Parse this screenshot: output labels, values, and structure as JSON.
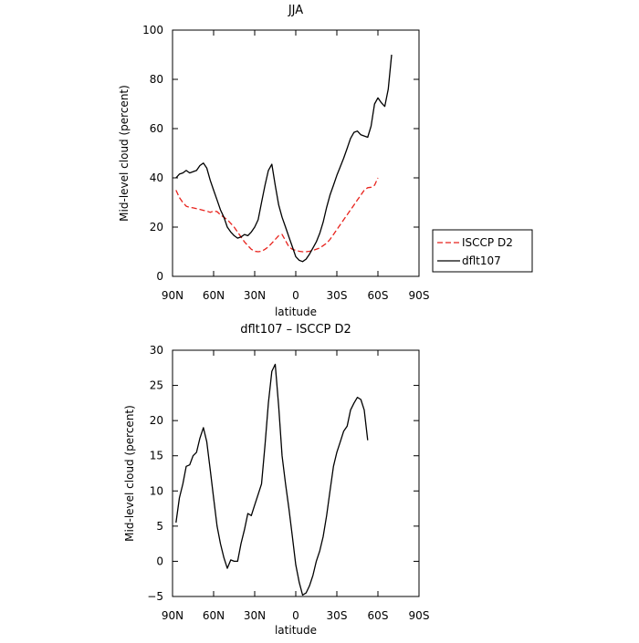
{
  "chart_data": [
    {
      "type": "line",
      "title": "JJA",
      "xlabel": "latitude",
      "ylabel": "Mid-level cloud (percent)",
      "xlim": [
        90,
        -90
      ],
      "ylim": [
        0,
        100
      ],
      "x_ticks": [
        90,
        60,
        30,
        0,
        -30,
        -60,
        -90
      ],
      "x_tick_labels": [
        "90N",
        "60N",
        "30N",
        "0",
        "30S",
        "60S",
        "90S"
      ],
      "y_ticks": [
        0,
        20,
        40,
        60,
        80,
        100
      ],
      "y_tick_labels": [
        "0",
        "20",
        "40",
        "60",
        "80",
        "100"
      ],
      "grid": false,
      "legend_position": "right-outside-bottom",
      "series": [
        {
          "name": "ISCCP D2",
          "color": "#e8221c",
          "style": "dashed",
          "points": [
            [
              87.5,
              35
            ],
            [
              85,
              32
            ],
            [
              82.5,
              30
            ],
            [
              80,
              28.5
            ],
            [
              77.5,
              28
            ],
            [
              75,
              27.8
            ],
            [
              72.5,
              27.5
            ],
            [
              70,
              27.2
            ],
            [
              67.5,
              26.8
            ],
            [
              65,
              26.5
            ],
            [
              62.5,
              26
            ],
            [
              60,
              26.5
            ],
            [
              57.5,
              26.3
            ],
            [
              55,
              25
            ],
            [
              52.5,
              24
            ],
            [
              50,
              23
            ],
            [
              47.5,
              21.5
            ],
            [
              45,
              20
            ],
            [
              42.5,
              18
            ],
            [
              40,
              16
            ],
            [
              37.5,
              14
            ],
            [
              35,
              12.5
            ],
            [
              32.5,
              11
            ],
            [
              30,
              10.2
            ],
            [
              27.5,
              10
            ],
            [
              25,
              10.2
            ],
            [
              22.5,
              11
            ],
            [
              20,
              12
            ],
            [
              17.5,
              13.5
            ],
            [
              15,
              15
            ],
            [
              12.5,
              16.5
            ],
            [
              10,
              17
            ],
            [
              7.5,
              14.5
            ],
            [
              5,
              12
            ],
            [
              2.5,
              11
            ],
            [
              0,
              10.5
            ],
            [
              -2.5,
              10.2
            ],
            [
              -5,
              10
            ],
            [
              -7.5,
              10
            ],
            [
              -10,
              10.2
            ],
            [
              -12.5,
              10.5
            ],
            [
              -15,
              11
            ],
            [
              -17.5,
              11.5
            ],
            [
              -20,
              12.5
            ],
            [
              -22.5,
              13.5
            ],
            [
              -25,
              15
            ],
            [
              -27.5,
              17
            ],
            [
              -30,
              19
            ],
            [
              -32.5,
              21
            ],
            [
              -35,
              23
            ],
            [
              -37.5,
              25
            ],
            [
              -40,
              27
            ],
            [
              -42.5,
              29
            ],
            [
              -45,
              31
            ],
            [
              -47.5,
              33
            ],
            [
              -50,
              35
            ],
            [
              -52.5,
              36
            ],
            [
              -55,
              36.2
            ],
            [
              -57.5,
              37
            ],
            [
              -60,
              40
            ]
          ]
        },
        {
          "name": "dflt107",
          "color": "#000000",
          "style": "solid",
          "points": [
            [
              87.5,
              40
            ],
            [
              85,
              41.5
            ],
            [
              82.5,
              42
            ],
            [
              80,
              43
            ],
            [
              77.5,
              42
            ],
            [
              75,
              42.5
            ],
            [
              72.5,
              43
            ],
            [
              70,
              45
            ],
            [
              67.5,
              46
            ],
            [
              65,
              44
            ],
            [
              62.5,
              39
            ],
            [
              60,
              35
            ],
            [
              57.5,
              31
            ],
            [
              55,
              27
            ],
            [
              52.5,
              24
            ],
            [
              50,
              20
            ],
            [
              47.5,
              18
            ],
            [
              45,
              16.5
            ],
            [
              42.5,
              15.5
            ],
            [
              40,
              16
            ],
            [
              37.5,
              17
            ],
            [
              35,
              16.5
            ],
            [
              32.5,
              18
            ],
            [
              30,
              20
            ],
            [
              27.5,
              23
            ],
            [
              25,
              30
            ],
            [
              22.5,
              37
            ],
            [
              20,
              43
            ],
            [
              17.5,
              45.5
            ],
            [
              15,
              37
            ],
            [
              12.5,
              29
            ],
            [
              10,
              24
            ],
            [
              7.5,
              20
            ],
            [
              5,
              16
            ],
            [
              2.5,
              12
            ],
            [
              0,
              8
            ],
            [
              -2.5,
              6.5
            ],
            [
              -5,
              6
            ],
            [
              -7.5,
              7
            ],
            [
              -10,
              9
            ],
            [
              -12.5,
              11.5
            ],
            [
              -15,
              14
            ],
            [
              -17.5,
              17.5
            ],
            [
              -20,
              22
            ],
            [
              -22.5,
              28
            ],
            [
              -25,
              33
            ],
            [
              -27.5,
              37
            ],
            [
              -30,
              41
            ],
            [
              -32.5,
              44.5
            ],
            [
              -35,
              48
            ],
            [
              -37.5,
              52
            ],
            [
              -40,
              56
            ],
            [
              -42.5,
              58.5
            ],
            [
              -45,
              59
            ],
            [
              -47.5,
              57.5
            ],
            [
              -50,
              57
            ],
            [
              -52.5,
              56.5
            ],
            [
              -55,
              61
            ],
            [
              -57.5,
              70
            ],
            [
              -60,
              72.5
            ],
            [
              -62.5,
              70.5
            ],
            [
              -65,
              69
            ],
            [
              -67.5,
              76
            ],
            [
              -70,
              90
            ]
          ]
        }
      ]
    },
    {
      "type": "line",
      "title": "dflt107 – ISCCP D2",
      "xlabel": "latitude",
      "ylabel": "Mid-level cloud (percent)",
      "xlim": [
        90,
        -90
      ],
      "ylim": [
        -5,
        30
      ],
      "x_ticks": [
        90,
        60,
        30,
        0,
        -30,
        -60,
        -90
      ],
      "x_tick_labels": [
        "90N",
        "60N",
        "30N",
        "0",
        "30S",
        "60S",
        "90S"
      ],
      "y_ticks": [
        -5,
        0,
        5,
        10,
        15,
        20,
        25,
        30
      ],
      "y_tick_labels": [
        "−5",
        "0",
        "5",
        "10",
        "15",
        "20",
        "25",
        "30"
      ],
      "grid": false,
      "series": [
        {
          "color": "#000000",
          "style": "solid",
          "points": [
            [
              87.5,
              5.5
            ],
            [
              85,
              9
            ],
            [
              82.5,
              11
            ],
            [
              80,
              13.5
            ],
            [
              77.5,
              13.7
            ],
            [
              75,
              15
            ],
            [
              72.5,
              15.5
            ],
            [
              70,
              17.5
            ],
            [
              67.5,
              19
            ],
            [
              65,
              17
            ],
            [
              62.5,
              13
            ],
            [
              60,
              9
            ],
            [
              57.5,
              5
            ],
            [
              55,
              2.5
            ],
            [
              52.5,
              0.5
            ],
            [
              50,
              -1
            ],
            [
              47.5,
              0.2
            ],
            [
              45,
              0
            ],
            [
              42.5,
              0
            ],
            [
              40,
              2.5
            ],
            [
              37.5,
              4.5
            ],
            [
              35,
              6.8
            ],
            [
              32.5,
              6.5
            ],
            [
              30,
              8
            ],
            [
              27.5,
              9.5
            ],
            [
              25,
              11
            ],
            [
              22.5,
              16.5
            ],
            [
              20,
              22.5
            ],
            [
              17.5,
              27
            ],
            [
              15,
              28
            ],
            [
              12.5,
              22
            ],
            [
              10,
              15
            ],
            [
              7.5,
              11
            ],
            [
              5,
              7.5
            ],
            [
              2.5,
              3.5
            ],
            [
              0,
              -0.5
            ],
            [
              -2.5,
              -3
            ],
            [
              -5,
              -4.8
            ],
            [
              -7.5,
              -4.5
            ],
            [
              -10,
              -3.5
            ],
            [
              -12.5,
              -2
            ],
            [
              -15,
              0
            ],
            [
              -17.5,
              1.5
            ],
            [
              -20,
              3.5
            ],
            [
              -22.5,
              6.5
            ],
            [
              -25,
              10
            ],
            [
              -27.5,
              13.5
            ],
            [
              -30,
              15.5
            ],
            [
              -32.5,
              17
            ],
            [
              -35,
              18.5
            ],
            [
              -37.5,
              19.2
            ],
            [
              -40,
              21.5
            ],
            [
              -42.5,
              22.5
            ],
            [
              -45,
              23.3
            ],
            [
              -47.5,
              23
            ],
            [
              -50,
              21.5
            ],
            [
              -52.5,
              17.2
            ]
          ]
        }
      ]
    }
  ]
}
